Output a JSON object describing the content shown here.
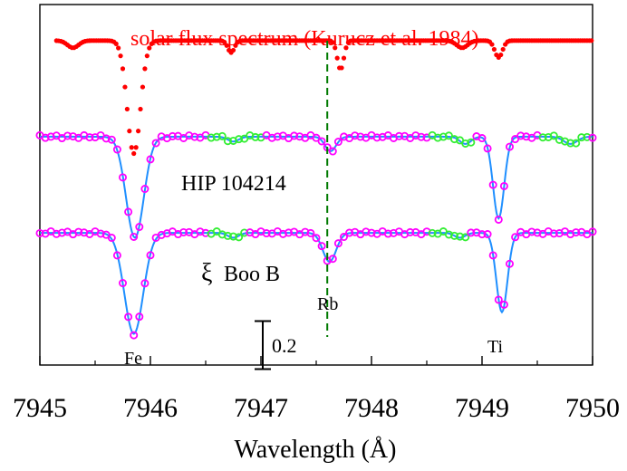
{
  "chart_data": {
    "type": "line",
    "xlabel": "Wavelength (Å)",
    "xlim": [
      7945,
      7950
    ],
    "ticks": [
      "7945",
      "7946",
      "7947",
      "7948",
      "7949",
      "7950"
    ],
    "grid": false,
    "annotations": {
      "solar_label": "solar flux spectrum (Kurucz et al. 1984)",
      "star1_label": "HIP 104214",
      "star2_symbol": "ξ",
      "star2_name": "Boo B",
      "rb_label": "Rb",
      "fe_label": "Fe",
      "ti_label": "Ti",
      "scale_label": "0.2"
    },
    "colors": {
      "solar": "#ff0000",
      "observed": "#ff00ff",
      "model": "#1f8fff",
      "masked": "#33ee33",
      "rb_marker": "#007a00"
    },
    "rb_line_wavelength": 7947.6,
    "scale_bar_depth": 0.2,
    "series": [
      {
        "name": "solar flux spectrum (Kurucz et al. 1984)",
        "offset": 0,
        "continuum": 1.0,
        "lines": [
          {
            "center": 7945.3,
            "depth": 0.03,
            "width": 0.05
          },
          {
            "center": 7945.85,
            "depth": 0.47,
            "width": 0.06
          },
          {
            "center": 7946.73,
            "depth": 0.05,
            "width": 0.03
          },
          {
            "center": 7947.72,
            "depth": 0.12,
            "width": 0.03
          },
          {
            "center": 7948.82,
            "depth": 0.03,
            "width": 0.05
          },
          {
            "center": 7949.15,
            "depth": 0.07,
            "width": 0.035
          }
        ]
      },
      {
        "name": "HIP 104214",
        "offset": -0.4,
        "continuum": 1.0,
        "lines": [
          {
            "center": 7945.86,
            "depth": 0.42,
            "width": 0.08
          },
          {
            "center": 7946.75,
            "depth": 0.02,
            "width": 0.05
          },
          {
            "center": 7947.63,
            "depth": 0.06,
            "width": 0.05
          },
          {
            "center": 7948.85,
            "depth": 0.03,
            "width": 0.05
          },
          {
            "center": 7949.15,
            "depth": 0.34,
            "width": 0.05
          },
          {
            "center": 7949.8,
            "depth": 0.03,
            "width": 0.06
          }
        ],
        "masked_ranges": [
          [
            7946.55,
            7947.05
          ],
          [
            7948.55,
            7948.95
          ],
          [
            7949.55,
            7949.98
          ]
        ]
      },
      {
        "name": "ξ Boo B",
        "offset": -0.8,
        "continuum": 1.0,
        "lines": [
          {
            "center": 7945.85,
            "depth": 0.42,
            "width": 0.085
          },
          {
            "center": 7946.75,
            "depth": 0.02,
            "width": 0.05
          },
          {
            "center": 7947.62,
            "depth": 0.12,
            "width": 0.06
          },
          {
            "center": 7948.8,
            "depth": 0.02,
            "width": 0.05
          },
          {
            "center": 7949.18,
            "depth": 0.33,
            "width": 0.05
          }
        ],
        "masked_ranges": [
          [
            7946.55,
            7946.9
          ],
          [
            7948.55,
            7948.88
          ]
        ]
      }
    ]
  }
}
